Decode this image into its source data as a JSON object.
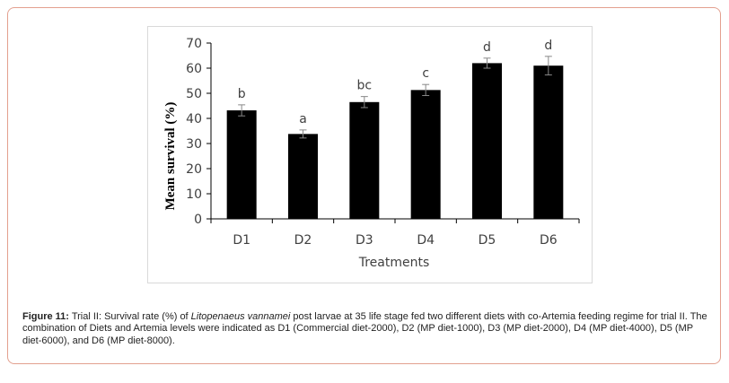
{
  "chart_data": {
    "type": "bar",
    "categories": [
      "D1",
      "D2",
      "D3",
      "D4",
      "D5",
      "D6"
    ],
    "values": [
      43.2,
      33.8,
      46.5,
      51.3,
      62.0,
      61.0
    ],
    "errors": [
      2.2,
      1.6,
      2.2,
      2.2,
      2.0,
      3.7
    ],
    "letters": [
      "b",
      "a",
      "bc",
      "c",
      "d",
      "d"
    ],
    "xlabel": "Treatments",
    "ylabel": "Mean survival (%)",
    "ylim": [
      0,
      70
    ],
    "yticks": [
      0,
      10,
      20,
      30,
      40,
      50,
      60,
      70
    ],
    "bar_color": "#000000",
    "grid": false,
    "legend": "none"
  },
  "caption": {
    "label": "Figure 11:",
    "text_before": " Trial II: Survival rate (%) of ",
    "species": "Litopenaeus vannamei",
    "text_after": " post larvae at 35 life stage fed two different diets with co-Artemia feeding regime for trial II. The combination of Diets and Artemia levels were indicated as D1 (Commercial diet-2000), D2 (MP diet-1000), D3 (MP diet-2000), D4 (MP diet-4000), D5 (MP diet-6000), and D6 (MP diet-8000)."
  },
  "colors": {
    "frame_border": "#e3a08f",
    "chart_border": "#d9d9d9",
    "axis": "#000000",
    "text": "#404040"
  }
}
